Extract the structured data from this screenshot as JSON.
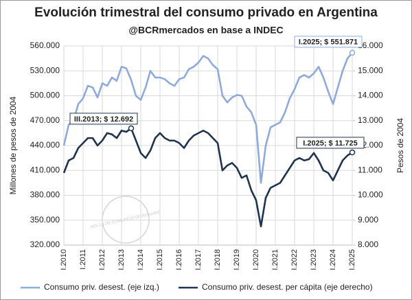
{
  "chart_data": {
    "type": "line",
    "title": "Evolución trimestral del consumo privado en Argentina",
    "subtitle": "@BCRmercados en base a INDEC",
    "ylabel": "Millones de pesos de 2004",
    "y2label": "Pesos de 2004",
    "watermark": "BOLSA DE COMERCIO DE ROSARIO",
    "categories": [
      "I.2010",
      null,
      null,
      null,
      "I.2011",
      null,
      null,
      null,
      "I.2012",
      null,
      null,
      null,
      "I.2013",
      null,
      null,
      null,
      "I.2014",
      null,
      null,
      null,
      "I.2015",
      null,
      null,
      null,
      "I.2016",
      null,
      null,
      null,
      "I.2017",
      null,
      null,
      null,
      "I.2018",
      null,
      null,
      null,
      "I.2019",
      null,
      null,
      null,
      "I.2020",
      null,
      null,
      null,
      "I.2021",
      null,
      null,
      null,
      "I.2022",
      null,
      null,
      null,
      "I.2023",
      null,
      null,
      null,
      "I.2024",
      null,
      null,
      null,
      "I.2025"
    ],
    "series": [
      {
        "name": "Consumo priv. desest. (eje izq.)",
        "color": "#8eaadb",
        "axis": "y",
        "values": [
          440000,
          465000,
          470000,
          490000,
          497000,
          512000,
          510000,
          498000,
          515000,
          512000,
          522000,
          518000,
          535000,
          533000,
          519000,
          500000,
          495000,
          510000,
          530000,
          522000,
          522000,
          520000,
          515000,
          512000,
          520000,
          522000,
          532000,
          535000,
          540000,
          548000,
          545000,
          537000,
          532000,
          500000,
          492000,
          498000,
          501000,
          500000,
          487000,
          480000,
          465000,
          395000,
          440000,
          462000,
          465000,
          468000,
          480000,
          497000,
          508000,
          522000,
          525000,
          522000,
          527000,
          535000,
          522000,
          505000,
          490000,
          510000,
          530000,
          545000,
          551871
        ]
      },
      {
        "name": "Consumo priv. desest. per cápita (eje derecho)",
        "color": "#1f3350",
        "axis": "y2",
        "values": [
          10900,
          11400,
          11500,
          11900,
          12100,
          12300,
          12300,
          12000,
          12200,
          12500,
          12450,
          12300,
          12600,
          12550,
          12692,
          12200,
          11700,
          11500,
          11800,
          12300,
          12500,
          12300,
          12200,
          12200,
          12100,
          11900,
          12200,
          12400,
          12500,
          12600,
          12500,
          12300,
          12100,
          11000,
          11200,
          11300,
          11100,
          10700,
          10800,
          10200,
          9800,
          8750,
          9900,
          10300,
          10400,
          10500,
          10800,
          11100,
          11400,
          11500,
          11400,
          11450,
          11700,
          11400,
          11000,
          10900,
          10600,
          11000,
          11400,
          11600,
          11725
        ]
      }
    ],
    "annotations": [
      {
        "text": "I.2025; $ 551.871",
        "series": 0,
        "index": 60
      },
      {
        "text": "III.2013; $ 12.692",
        "series": 1,
        "index": 14
      },
      {
        "text": "I.2025; $ 11.725",
        "series": 1,
        "index": 60
      }
    ],
    "ylim": [
      320000,
      560000
    ],
    "yticks": [
      {
        "value": 320000,
        "label": "320.000"
      },
      {
        "value": 350000,
        "label": "350.000"
      },
      {
        "value": 380000,
        "label": "380.000"
      },
      {
        "value": 410000,
        "label": "410.000"
      },
      {
        "value": 440000,
        "label": "440.000"
      },
      {
        "value": 470000,
        "label": "470.000"
      },
      {
        "value": 500000,
        "label": "500.000"
      },
      {
        "value": 530000,
        "label": "530.000"
      },
      {
        "value": 560000,
        "label": "560.000"
      }
    ],
    "y2lim": [
      8000,
      16000
    ],
    "y2ticks": [
      {
        "value": 8000,
        "label": "8.000"
      },
      {
        "value": 9000,
        "label": "9.000"
      },
      {
        "value": 10000,
        "label": "10.000"
      },
      {
        "value": 11000,
        "label": "11.000"
      },
      {
        "value": 12000,
        "label": "12.000"
      },
      {
        "value": 13000,
        "label": "13.000"
      },
      {
        "value": 14000,
        "label": "14.000"
      },
      {
        "value": 15000,
        "label": "15.000"
      },
      {
        "value": 16000,
        "label": "16.000"
      }
    ],
    "grid": true,
    "legend": "bottom"
  }
}
